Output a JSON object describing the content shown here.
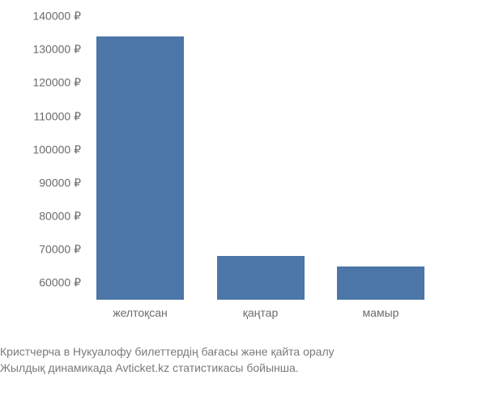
{
  "chart": {
    "type": "bar",
    "categories": [
      "желтоқсан",
      "қаңтар",
      "мамыр"
    ],
    "values": [
      134000,
      68000,
      65000
    ],
    "bar_color": "#4b76a7",
    "ylim_min": 55000,
    "ylim_max": 140000,
    "ytick_values": [
      60000,
      70000,
      80000,
      90000,
      100000,
      110000,
      120000,
      130000,
      140000
    ],
    "ytick_labels": [
      "60000 ₽",
      "70000 ₽",
      "80000 ₽",
      "90000 ₽",
      "100000 ₽",
      "110000 ₽",
      "120000 ₽",
      "130000 ₽",
      "140000 ₽"
    ],
    "bar_width_pct": 24,
    "bar_positions_pct": [
      14,
      47,
      80
    ],
    "label_color": "#6b6b6b",
    "label_fontsize": 14,
    "background_color": "#ffffff"
  },
  "caption": {
    "line1": "Кристчерча в Нукуалофу билеттердің бағасы және қайта оралу",
    "line2": "Жылдық динамикада Avticket.kz статистикасы бойынша.",
    "color": "#7a7a7a",
    "fontsize": 14
  }
}
